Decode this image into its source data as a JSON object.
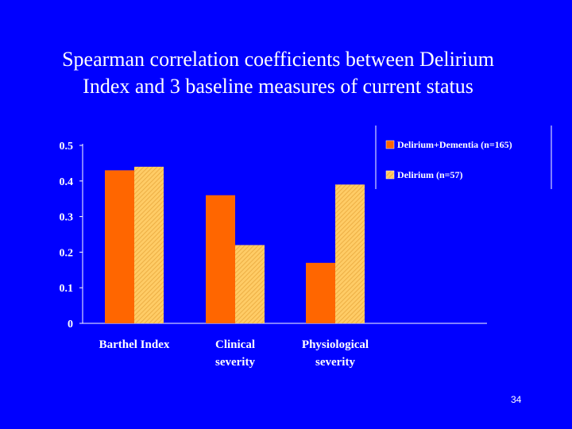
{
  "slide": {
    "title_line1": "Spearman correlation coefficients between Delirium",
    "title_line2": "Index and 3 baseline measures of current status",
    "page_number": "34"
  },
  "colors": {
    "background": "#0000FF",
    "text": "#FFFFFF",
    "series1": "#FF6600",
    "series2": "#FFCC66",
    "series2_hatch": "#E8A83C"
  },
  "chart_data": {
    "type": "bar",
    "title": "Spearman correlation coefficients between Delirium Index and 3 baseline measures of current status",
    "xlabel": "",
    "ylabel": "",
    "ylim": [
      0,
      0.5
    ],
    "yticks": [
      0,
      0.1,
      0.2,
      0.3,
      0.4,
      0.5
    ],
    "ytick_labels": [
      "0",
      "0.1",
      "0.2",
      "0.3",
      "0.4",
      "0.5"
    ],
    "categories": [
      [
        "Barthel Index"
      ],
      [
        "Clinical",
        "severity"
      ],
      [
        "Physiological",
        "severity"
      ]
    ],
    "series": [
      {
        "name": "Delirium+Dementia (n=165)",
        "values": [
          0.43,
          0.36,
          0.17
        ]
      },
      {
        "name": "Delirium (n=57)",
        "values": [
          0.44,
          0.22,
          0.39
        ]
      }
    ],
    "legend_position": "top-right",
    "grid": false
  }
}
